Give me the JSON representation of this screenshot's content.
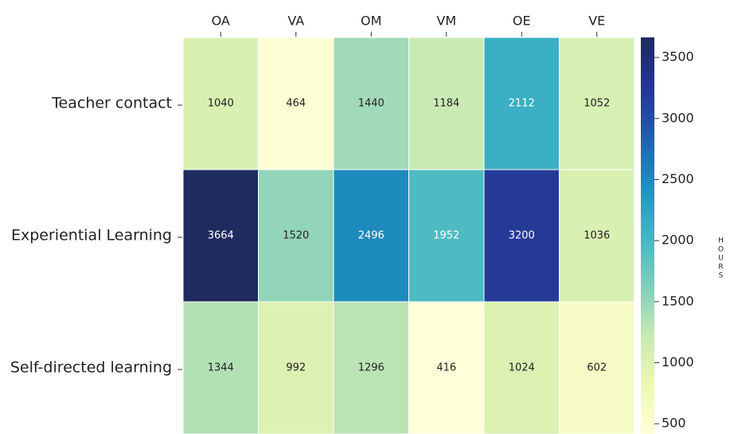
{
  "chart_data": {
    "type": "heatmap",
    "x_categories": [
      "OA",
      "VA",
      "OM",
      "VM",
      "OE",
      "VE"
    ],
    "y_categories": [
      "Teacher contact",
      "Experiential Learning",
      "Self-directed learning"
    ],
    "values": [
      [
        1040,
        464,
        1440,
        1184,
        2112,
        1052
      ],
      [
        3664,
        1520,
        2496,
        1952,
        3200,
        1036
      ],
      [
        1344,
        992,
        1296,
        416,
        1024,
        602
      ]
    ],
    "colormap": "YlGnBu",
    "clim": [
      416,
      3664
    ],
    "cticks": [
      500,
      1000,
      1500,
      2000,
      2500,
      3000,
      3500
    ],
    "colorbar_label": "HOURS"
  }
}
